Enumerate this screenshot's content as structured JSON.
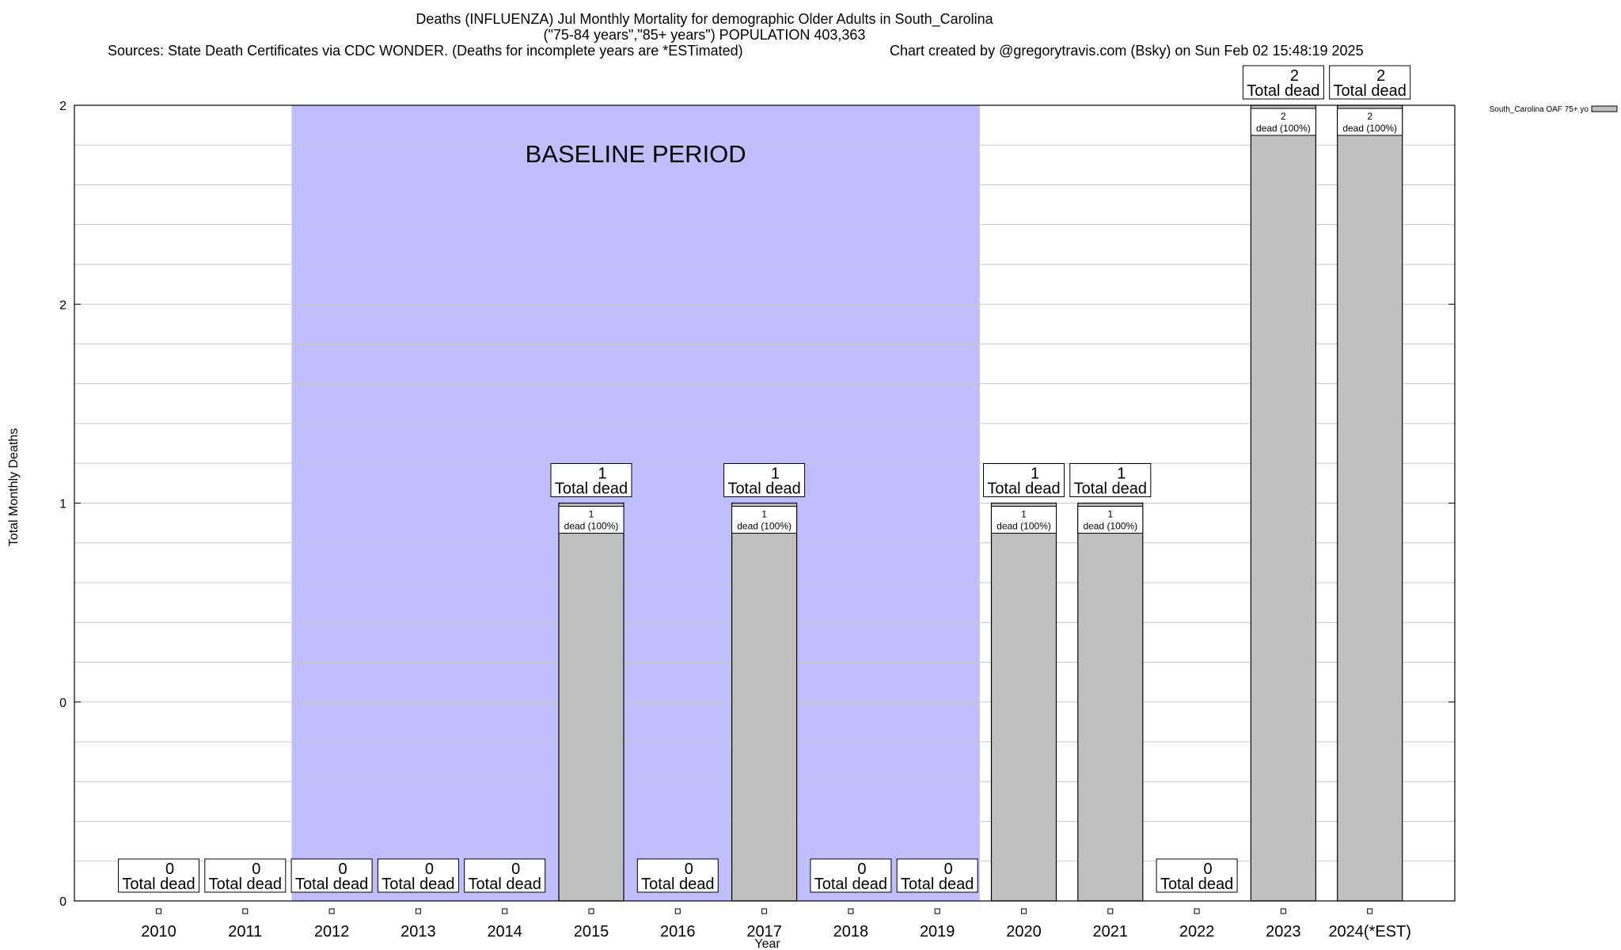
{
  "chart_data": {
    "type": "bar",
    "title_lines": [
      "Deaths (INFLUENZA) Jul Monthly Mortality for demographic Older Adults in South_Carolina",
      "(\"75-84 years\",\"85+ years\") POPULATION 403,363"
    ],
    "sources_text": "Sources: State Death Certificates via CDC WONDER. (Deaths for incomplete years are *ESTimated)",
    "credit_text": "Chart created by @gregorytravis.com (Bsky) on Sun Feb 02 15:48:19 2025",
    "xlabel": "Year",
    "ylabel": "Total Monthly Deaths",
    "ylim": [
      0,
      2
    ],
    "y_tick_labels": [
      "0",
      "0",
      "1",
      "2",
      "2"
    ],
    "y_tick_values": [
      0,
      0.5,
      1,
      1.5,
      2
    ],
    "categories": [
      "2010",
      "2011",
      "2012",
      "2013",
      "2014",
      "2015",
      "2016",
      "2017",
      "2018",
      "2019",
      "2020",
      "2021",
      "2022",
      "2023",
      "2024(*EST)"
    ],
    "series": [
      {
        "name": "South_Carolina OAF 75+ yo",
        "values": [
          0,
          0,
          0,
          0,
          0,
          1,
          0,
          1,
          0,
          0,
          1,
          1,
          0,
          2,
          2
        ],
        "color": "#c0c0c0"
      }
    ],
    "total_label_suffix": "Total dead",
    "bar_label_suffix": "dead (100%)",
    "baseline": {
      "label": "BASELINE PERIOD",
      "start_category": "2012",
      "end_category": "2019",
      "color": "#bfbffd"
    },
    "grid": true,
    "legend_position": "top-right"
  }
}
